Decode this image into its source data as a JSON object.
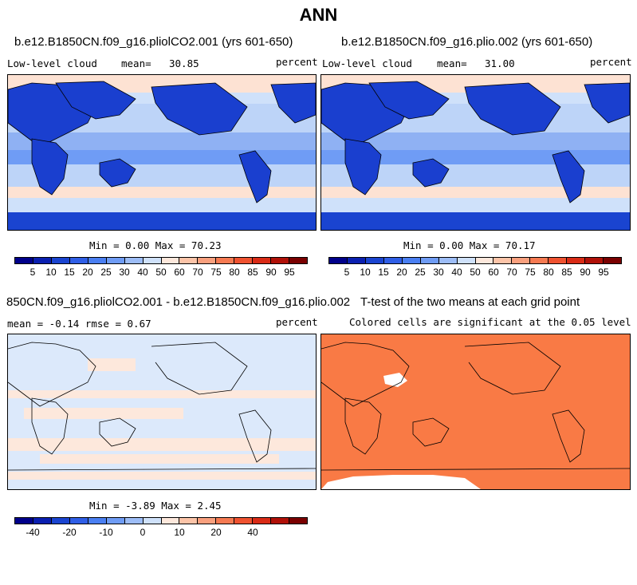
{
  "title": "ANN",
  "panels": [
    {
      "title": "b.e12.B1850CN.f09_g16.pliolCO2.001 (yrs 601-650)",
      "variable": "Low-level cloud",
      "mean_label": "mean=",
      "mean_value": "30.85",
      "units": "percent",
      "minmax": "Min =    0.00 Max =   70.23"
    },
    {
      "title": "b.e12.B1850CN.f09_g16.plio.002 (yrs 601-650)",
      "variable": "Low-level cloud",
      "mean_label": "mean=",
      "mean_value": "31.00",
      "units": "percent",
      "minmax": "Min =    0.00 Max =   70.17"
    },
    {
      "title": "850CN.f09_g16.pliolCO2.001 - b.e12.B1850CN.f09_g16.plio.002",
      "mean_text": "mean =   -0.14    rmse =    0.67",
      "units": "percent",
      "minmax": "Min =  -3.89 Max =    2.45"
    },
    {
      "title": "T-test of the two means at each grid point",
      "subtitle": "Colored cells are significant at the 0.05 level"
    }
  ],
  "colorbar_abs": {
    "colors": [
      "#00008a",
      "#0a1fb0",
      "#1a44d0",
      "#2f5ee6",
      "#4a7ff2",
      "#6f9cf5",
      "#9dbdf7",
      "#cfe1fa",
      "#fde8dc",
      "#fcc4a8",
      "#f9a07e",
      "#f67a52",
      "#ef5230",
      "#d92b16",
      "#b01008",
      "#7a0000"
    ],
    "ticks": [
      "5",
      "10",
      "15",
      "20",
      "25",
      "30",
      "40",
      "50",
      "60",
      "70",
      "75",
      "80",
      "85",
      "90",
      "95"
    ]
  },
  "colorbar_diff": {
    "colors": [
      "#00008a",
      "#0a1fb0",
      "#1a44d0",
      "#2f5ee6",
      "#4a7ff2",
      "#6f9cf5",
      "#9dbdf7",
      "#cfe1fa",
      "#fde8dc",
      "#fcc4a8",
      "#f9a07e",
      "#f67a52",
      "#ef5230",
      "#d92b16",
      "#b01008",
      "#7a0000"
    ],
    "ticks": [
      "-40",
      "",
      "-20",
      "",
      "-10",
      "",
      "0",
      "",
      "10",
      "",
      "20",
      "",
      "40"
    ]
  },
  "colors": {
    "ocean_low": "#cfe1fa",
    "land_low": "#2f5ee6",
    "diff_base": "#dce9fb",
    "diff_pos": "#fde8dc",
    "ttest": "#f97a45"
  }
}
